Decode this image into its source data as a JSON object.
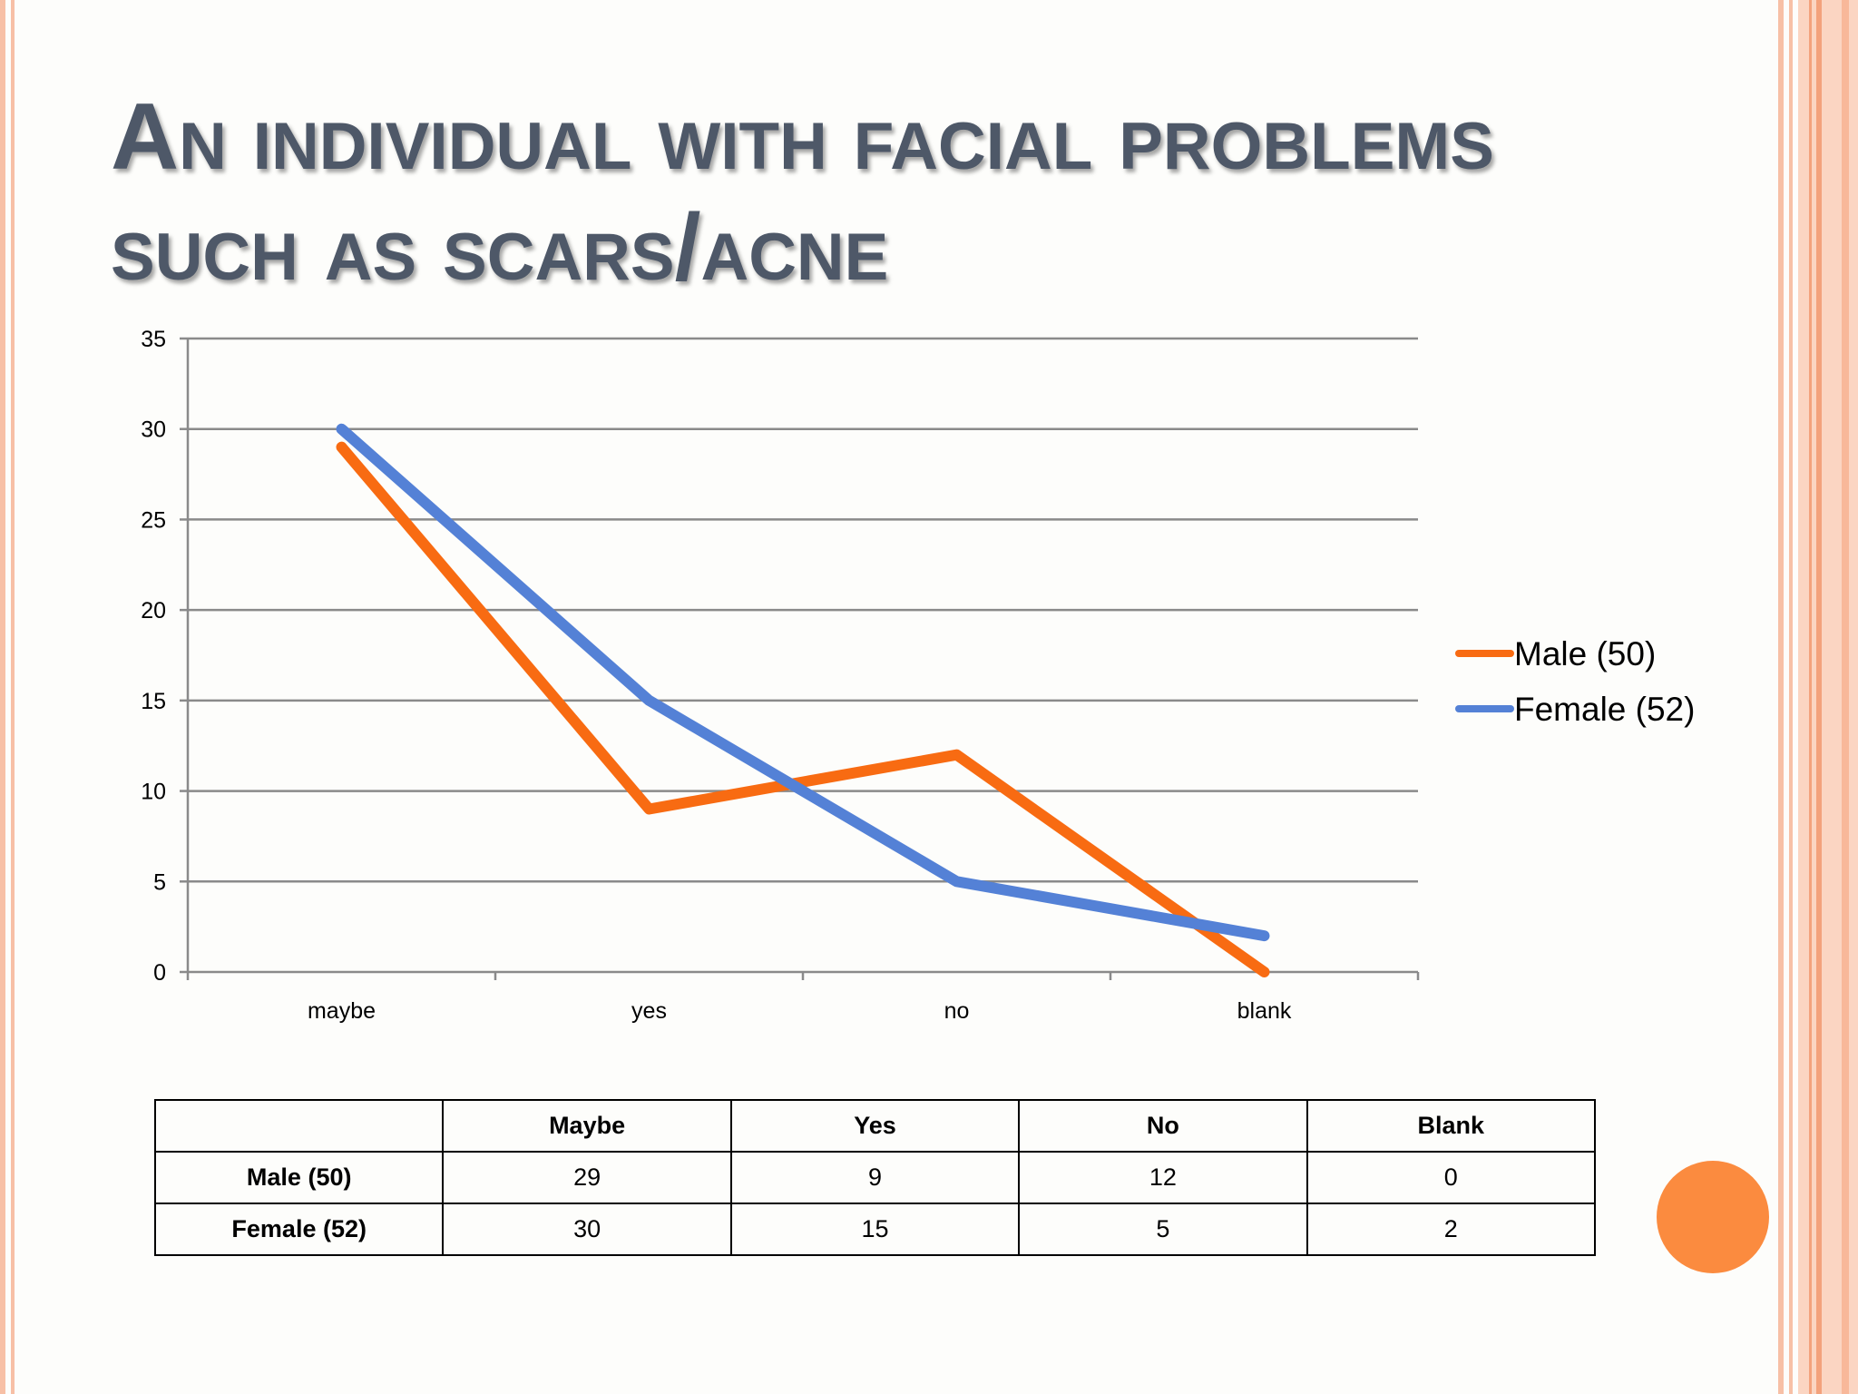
{
  "title": "An individual with facial problems such as scars/acne",
  "colors": {
    "male": "#f86b12",
    "female": "#5481d6",
    "title": "#4e5868",
    "accent_circle": "#fb8b3f",
    "decor_stripe": "#f7c0a6"
  },
  "chart_data": {
    "type": "line",
    "categories": [
      "maybe",
      "yes",
      "no",
      "blank"
    ],
    "series": [
      {
        "name": "Male (50)",
        "values": [
          29,
          9,
          12,
          0
        ],
        "color": "#f86b12"
      },
      {
        "name": "Female (52)",
        "values": [
          30,
          15,
          5,
          2
        ],
        "color": "#5481d6"
      }
    ],
    "yticks": [
      "0",
      "5",
      "10",
      "15",
      "20",
      "25",
      "30",
      "35"
    ],
    "ylim": [
      0,
      35
    ],
    "grid": true,
    "legend_position": "right"
  },
  "table": {
    "headers": [
      "",
      "Maybe",
      "Yes",
      "No",
      "Blank"
    ],
    "rows": [
      {
        "label": "Male (50)",
        "values": [
          "29",
          "9",
          "12",
          "0"
        ]
      },
      {
        "label": "Female (52)",
        "values": [
          "30",
          "15",
          "5",
          "2"
        ]
      }
    ]
  }
}
